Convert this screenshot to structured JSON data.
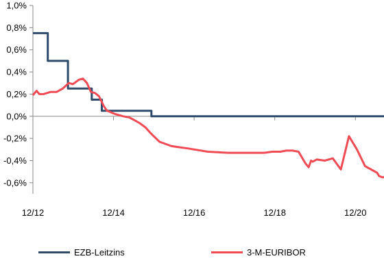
{
  "chart_data": {
    "type": "line",
    "title": "",
    "xlabel": "",
    "ylabel": "",
    "xlim": [
      2012.96,
      2021.67
    ],
    "ylim": [
      -0.7,
      1.0
    ],
    "y_ticks": [
      1.0,
      0.8,
      0.6,
      0.4,
      0.2,
      0.0,
      -0.2,
      -0.4,
      -0.6
    ],
    "y_tick_labels": [
      "1,0%",
      "0,8%",
      "0,6%",
      "0,4%",
      "0,2%",
      "0,0%",
      "-0,2%",
      "-0,4%",
      "-0,6%"
    ],
    "x_ticks": [
      2012.96,
      2014.96,
      2016.96,
      2018.96,
      2020.96
    ],
    "x_tick_labels": [
      "12/12",
      "12/14",
      "12/16",
      "12/18",
      "12/20"
    ],
    "grid": false,
    "legend_position": "bottom",
    "series": [
      {
        "name": "EZB-Leitzins",
        "color": "#2e4a6b",
        "step": true,
        "x": [
          2012.96,
          2013.33,
          2013.83,
          2014.42,
          2014.67,
          2015.9,
          2021.67
        ],
        "y": [
          0.75,
          0.5,
          0.25,
          0.15,
          0.05,
          0.0,
          0.0
        ]
      },
      {
        "name": "3-M-EURIBOR",
        "color": "#ef4b55",
        "step": false,
        "x": [
          2012.96,
          2013.05,
          2013.12,
          2013.22,
          2013.4,
          2013.55,
          2013.7,
          2013.85,
          2013.95,
          2014.1,
          2014.2,
          2014.3,
          2014.4,
          2014.5,
          2014.6,
          2014.72,
          2014.8,
          2015.0,
          2015.2,
          2015.35,
          2015.45,
          2015.6,
          2015.75,
          2015.9,
          2016.1,
          2016.4,
          2016.8,
          2017.3,
          2017.8,
          2018.3,
          2018.55,
          2018.7,
          2018.9,
          2019.0,
          2019.1,
          2019.25,
          2019.4,
          2019.55,
          2019.68,
          2019.73,
          2019.8,
          2019.86,
          2019.9,
          2020.0,
          2020.2,
          2020.4,
          2020.6,
          2020.8,
          2021.0,
          2021.2,
          2021.4,
          2021.5,
          2021.55,
          2021.62,
          2021.67
        ],
        "y": [
          0.19,
          0.23,
          0.2,
          0.2,
          0.22,
          0.22,
          0.25,
          0.3,
          0.29,
          0.33,
          0.34,
          0.3,
          0.22,
          0.21,
          0.18,
          0.09,
          0.05,
          0.02,
          0.0,
          -0.01,
          -0.03,
          -0.06,
          -0.1,
          -0.16,
          -0.23,
          -0.27,
          -0.29,
          -0.32,
          -0.33,
          -0.33,
          -0.33,
          -0.33,
          -0.32,
          -0.32,
          -0.32,
          -0.31,
          -0.31,
          -0.32,
          -0.4,
          -0.43,
          -0.46,
          -0.4,
          -0.41,
          -0.39,
          -0.4,
          -0.38,
          -0.48,
          -0.18,
          -0.3,
          -0.45,
          -0.49,
          -0.51,
          -0.54,
          -0.55,
          -0.55
        ]
      }
    ]
  }
}
